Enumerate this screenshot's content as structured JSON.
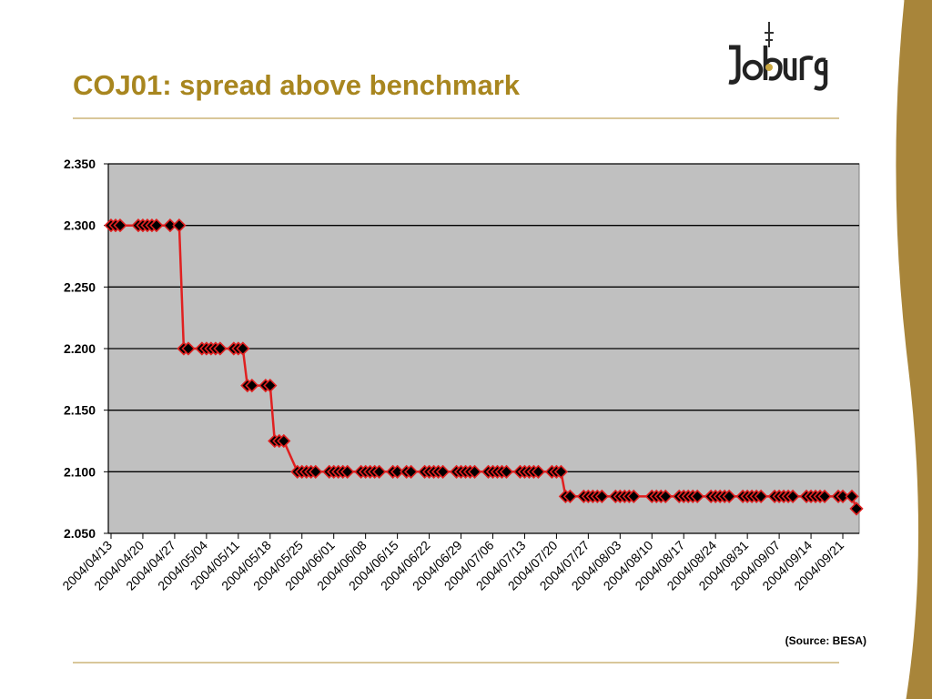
{
  "slide": {
    "title": "COJ01: spread above benchmark",
    "logo_text": "Joburg",
    "source": "(Source: BESA)"
  },
  "colors": {
    "title": "#a8861f",
    "plot_bg": "#c0c0c0",
    "line": "#e02020",
    "marker_fill": "#000000",
    "band": "#a8853a"
  },
  "chart_data": {
    "type": "line",
    "title": "",
    "xlabel": "",
    "ylabel": "",
    "ylim": [
      2.05,
      2.35
    ],
    "yticks": [
      "2.050",
      "2.100",
      "2.150",
      "2.200",
      "2.250",
      "2.300",
      "2.350"
    ],
    "grid": true,
    "legend": "none",
    "x_ticks": [
      "2004/04/13",
      "2004/04/20",
      "2004/04/27",
      "2004/05/04",
      "2004/05/11",
      "2004/05/18",
      "2004/05/25",
      "2004/06/01",
      "2004/06/08",
      "2004/06/15",
      "2004/06/22",
      "2004/06/29",
      "2004/07/06",
      "2004/07/13",
      "2004/07/20",
      "2004/07/27",
      "2004/08/03",
      "2004/08/10",
      "2004/08/17",
      "2004/08/24",
      "2004/08/31",
      "2004/09/07",
      "2004/09/14",
      "2004/09/21"
    ],
    "x_start": "2004/04/13",
    "x_end": "2004/09/24",
    "series": [
      {
        "values": [
          {
            "x": "2004/04/13",
            "y": 2.3
          },
          {
            "x": "2004/04/14",
            "y": 2.3
          },
          {
            "x": "2004/04/15",
            "y": 2.3
          },
          {
            "x": "2004/04/19",
            "y": 2.3
          },
          {
            "x": "2004/04/20",
            "y": 2.3
          },
          {
            "x": "2004/04/21",
            "y": 2.3
          },
          {
            "x": "2004/04/22",
            "y": 2.3
          },
          {
            "x": "2004/04/23",
            "y": 2.3
          },
          {
            "x": "2004/04/26",
            "y": 2.3
          },
          {
            "x": "2004/04/28",
            "y": 2.3
          },
          {
            "x": "2004/04/29",
            "y": 2.2
          },
          {
            "x": "2004/04/30",
            "y": 2.2
          },
          {
            "x": "2004/05/03",
            "y": 2.2
          },
          {
            "x": "2004/05/04",
            "y": 2.2
          },
          {
            "x": "2004/05/05",
            "y": 2.2
          },
          {
            "x": "2004/05/06",
            "y": 2.2
          },
          {
            "x": "2004/05/07",
            "y": 2.2
          },
          {
            "x": "2004/05/10",
            "y": 2.2
          },
          {
            "x": "2004/05/11",
            "y": 2.2
          },
          {
            "x": "2004/05/12",
            "y": 2.2
          },
          {
            "x": "2004/05/13",
            "y": 2.17
          },
          {
            "x": "2004/05/14",
            "y": 2.17
          },
          {
            "x": "2004/05/17",
            "y": 2.17
          },
          {
            "x": "2004/05/18",
            "y": 2.17
          },
          {
            "x": "2004/05/19",
            "y": 2.125
          },
          {
            "x": "2004/05/20",
            "y": 2.125
          },
          {
            "x": "2004/05/21",
            "y": 2.125
          },
          {
            "x": "2004/05/24",
            "y": 2.1
          },
          {
            "x": "2004/05/25",
            "y": 2.1
          },
          {
            "x": "2004/05/26",
            "y": 2.1
          },
          {
            "x": "2004/05/27",
            "y": 2.1
          },
          {
            "x": "2004/05/28",
            "y": 2.1
          },
          {
            "x": "2004/05/31",
            "y": 2.1
          },
          {
            "x": "2004/06/01",
            "y": 2.1
          },
          {
            "x": "2004/06/02",
            "y": 2.1
          },
          {
            "x": "2004/06/03",
            "y": 2.1
          },
          {
            "x": "2004/06/04",
            "y": 2.1
          },
          {
            "x": "2004/06/07",
            "y": 2.1
          },
          {
            "x": "2004/06/08",
            "y": 2.1
          },
          {
            "x": "2004/06/09",
            "y": 2.1
          },
          {
            "x": "2004/06/10",
            "y": 2.1
          },
          {
            "x": "2004/06/11",
            "y": 2.1
          },
          {
            "x": "2004/06/14",
            "y": 2.1
          },
          {
            "x": "2004/06/15",
            "y": 2.1
          },
          {
            "x": "2004/06/17",
            "y": 2.1
          },
          {
            "x": "2004/06/18",
            "y": 2.1
          },
          {
            "x": "2004/06/21",
            "y": 2.1
          },
          {
            "x": "2004/06/22",
            "y": 2.1
          },
          {
            "x": "2004/06/23",
            "y": 2.1
          },
          {
            "x": "2004/06/24",
            "y": 2.1
          },
          {
            "x": "2004/06/25",
            "y": 2.1
          },
          {
            "x": "2004/06/28",
            "y": 2.1
          },
          {
            "x": "2004/06/29",
            "y": 2.1
          },
          {
            "x": "2004/06/30",
            "y": 2.1
          },
          {
            "x": "2004/07/01",
            "y": 2.1
          },
          {
            "x": "2004/07/02",
            "y": 2.1
          },
          {
            "x": "2004/07/05",
            "y": 2.1
          },
          {
            "x": "2004/07/06",
            "y": 2.1
          },
          {
            "x": "2004/07/07",
            "y": 2.1
          },
          {
            "x": "2004/07/08",
            "y": 2.1
          },
          {
            "x": "2004/07/09",
            "y": 2.1
          },
          {
            "x": "2004/07/12",
            "y": 2.1
          },
          {
            "x": "2004/07/13",
            "y": 2.1
          },
          {
            "x": "2004/07/14",
            "y": 2.1
          },
          {
            "x": "2004/07/15",
            "y": 2.1
          },
          {
            "x": "2004/07/16",
            "y": 2.1
          },
          {
            "x": "2004/07/19",
            "y": 2.1
          },
          {
            "x": "2004/07/20",
            "y": 2.1
          },
          {
            "x": "2004/07/21",
            "y": 2.1
          },
          {
            "x": "2004/07/22",
            "y": 2.08
          },
          {
            "x": "2004/07/23",
            "y": 2.08
          },
          {
            "x": "2004/07/26",
            "y": 2.08
          },
          {
            "x": "2004/07/27",
            "y": 2.08
          },
          {
            "x": "2004/07/28",
            "y": 2.08
          },
          {
            "x": "2004/07/29",
            "y": 2.08
          },
          {
            "x": "2004/07/30",
            "y": 2.08
          },
          {
            "x": "2004/08/02",
            "y": 2.08
          },
          {
            "x": "2004/08/03",
            "y": 2.08
          },
          {
            "x": "2004/08/04",
            "y": 2.08
          },
          {
            "x": "2004/08/05",
            "y": 2.08
          },
          {
            "x": "2004/08/06",
            "y": 2.08
          },
          {
            "x": "2004/08/10",
            "y": 2.08
          },
          {
            "x": "2004/08/11",
            "y": 2.08
          },
          {
            "x": "2004/08/12",
            "y": 2.08
          },
          {
            "x": "2004/08/13",
            "y": 2.08
          },
          {
            "x": "2004/08/16",
            "y": 2.08
          },
          {
            "x": "2004/08/17",
            "y": 2.08
          },
          {
            "x": "2004/08/18",
            "y": 2.08
          },
          {
            "x": "2004/08/19",
            "y": 2.08
          },
          {
            "x": "2004/08/20",
            "y": 2.08
          },
          {
            "x": "2004/08/23",
            "y": 2.08
          },
          {
            "x": "2004/08/24",
            "y": 2.08
          },
          {
            "x": "2004/08/25",
            "y": 2.08
          },
          {
            "x": "2004/08/26",
            "y": 2.08
          },
          {
            "x": "2004/08/27",
            "y": 2.08
          },
          {
            "x": "2004/08/30",
            "y": 2.08
          },
          {
            "x": "2004/08/31",
            "y": 2.08
          },
          {
            "x": "2004/09/01",
            "y": 2.08
          },
          {
            "x": "2004/09/02",
            "y": 2.08
          },
          {
            "x": "2004/09/03",
            "y": 2.08
          },
          {
            "x": "2004/09/06",
            "y": 2.08
          },
          {
            "x": "2004/09/07",
            "y": 2.08
          },
          {
            "x": "2004/09/08",
            "y": 2.08
          },
          {
            "x": "2004/09/09",
            "y": 2.08
          },
          {
            "x": "2004/09/10",
            "y": 2.08
          },
          {
            "x": "2004/09/13",
            "y": 2.08
          },
          {
            "x": "2004/09/14",
            "y": 2.08
          },
          {
            "x": "2004/09/15",
            "y": 2.08
          },
          {
            "x": "2004/09/16",
            "y": 2.08
          },
          {
            "x": "2004/09/17",
            "y": 2.08
          },
          {
            "x": "2004/09/20",
            "y": 2.08
          },
          {
            "x": "2004/09/21",
            "y": 2.08
          },
          {
            "x": "2004/09/23",
            "y": 2.08
          },
          {
            "x": "2004/09/24",
            "y": 2.07
          }
        ]
      }
    ]
  }
}
